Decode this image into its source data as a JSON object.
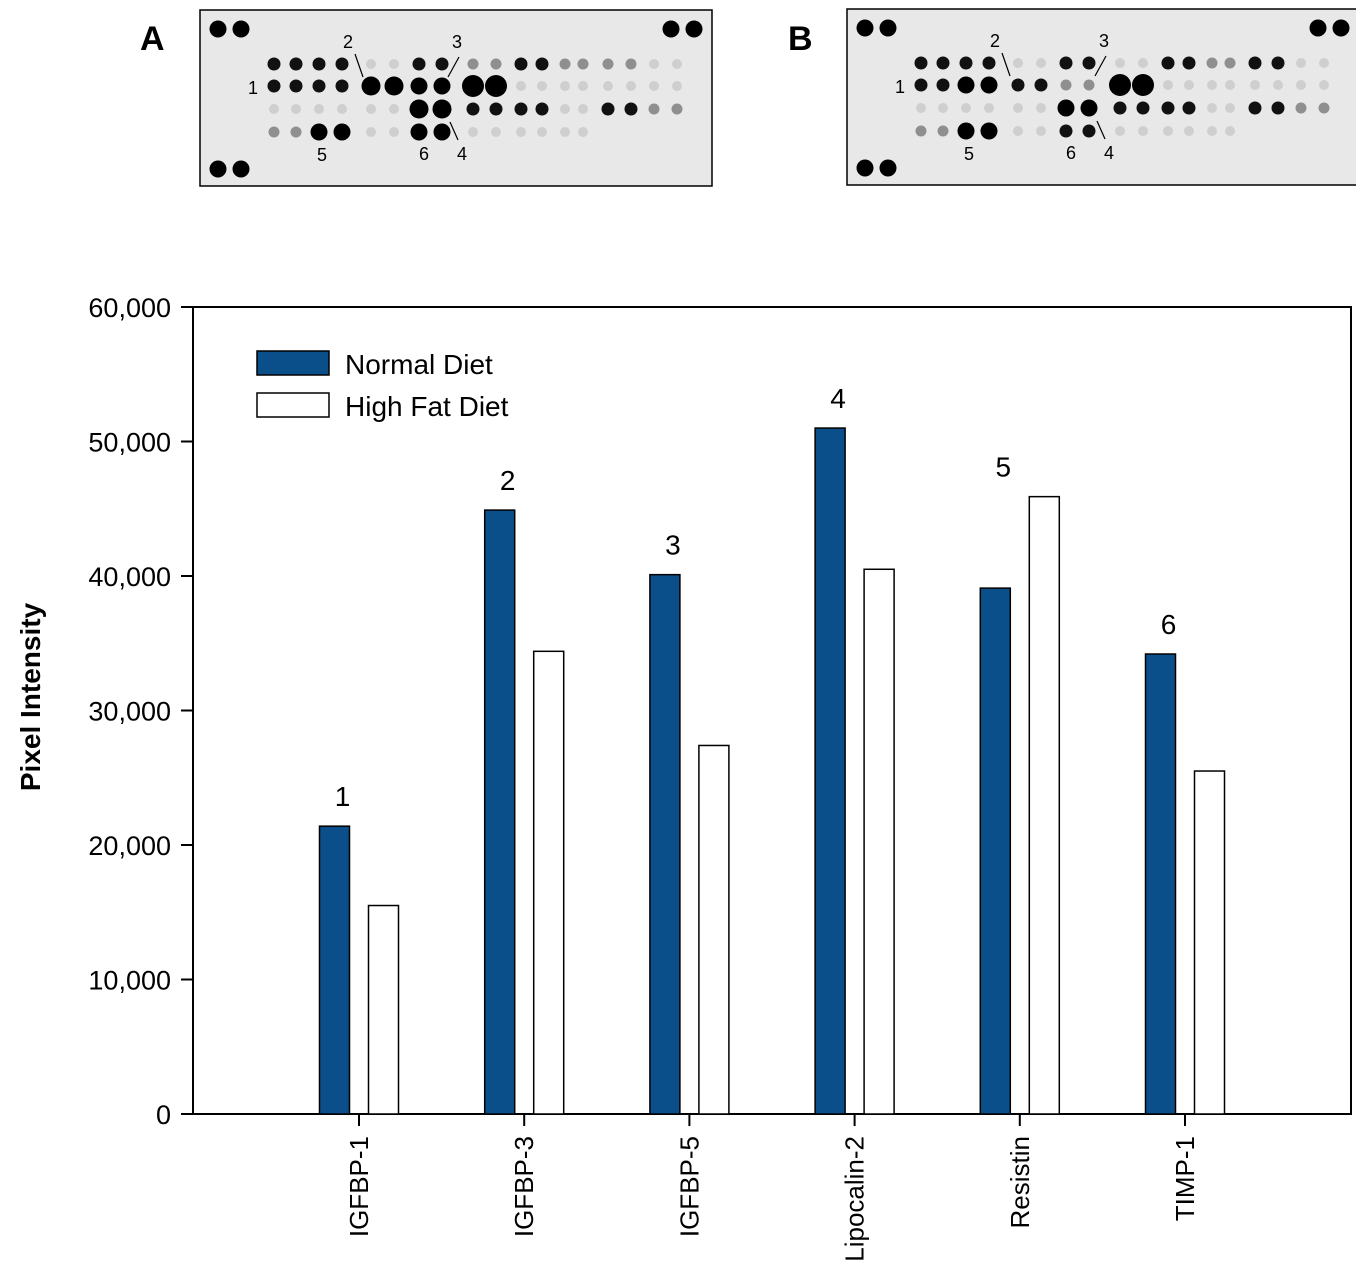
{
  "panels": [
    {
      "letter": "A",
      "spot_labels": [
        "1",
        "2",
        "3",
        "4",
        "5",
        "6"
      ]
    },
    {
      "letter": "B",
      "spot_labels": [
        "1",
        "2",
        "3",
        "4",
        "5",
        "6"
      ]
    }
  ],
  "chart_data": {
    "type": "bar",
    "categories": [
      "IGFBP-1",
      "IGFBP-3",
      "IGFBP-5",
      "Lipocalin-2",
      "Resistin",
      "TIMP-1"
    ],
    "series": [
      {
        "name": "Normal Diet",
        "color": "#0a4f8a",
        "values": [
          21400,
          44900,
          40100,
          51000,
          39100,
          34200
        ]
      },
      {
        "name": "High Fat Diet",
        "color": "#ffffff",
        "values": [
          15500,
          34400,
          27400,
          40500,
          45900,
          25500
        ]
      }
    ],
    "annotations": [
      "1",
      "2",
      "3",
      "4",
      "5",
      "6"
    ],
    "ylabel": "Pixel Intensity",
    "xlabel": "",
    "ylim": [
      0,
      60000
    ],
    "yticks": [
      0,
      10000,
      20000,
      30000,
      40000,
      50000,
      60000
    ],
    "ytick_labels": [
      "0",
      "10,000",
      "20,000",
      "30,000",
      "40,000",
      "50,000",
      "60,000"
    ],
    "legend_position": "top-left",
    "grid": false
  }
}
